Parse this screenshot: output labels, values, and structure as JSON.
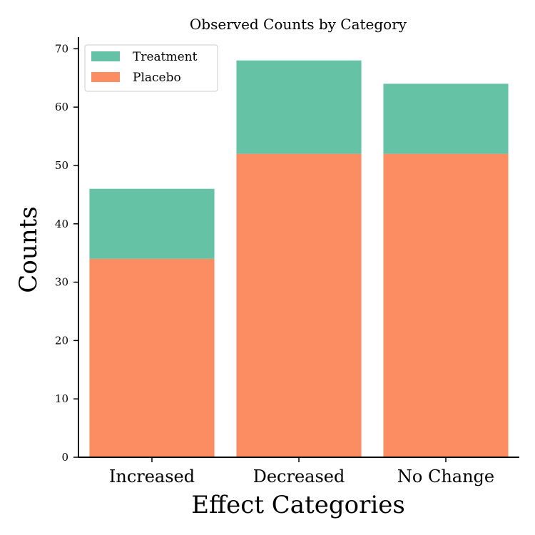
{
  "chart_data": {
    "type": "bar",
    "stacked": true,
    "title": "Observed Counts by Category",
    "xlabel": "Effect Categories",
    "ylabel": "Counts",
    "categories": [
      "Increased",
      "Decreased",
      "No Change"
    ],
    "series": [
      {
        "name": "Placebo",
        "values": [
          34,
          52,
          52
        ],
        "color": "#fc8d62"
      },
      {
        "name": "Treatment",
        "values": [
          12,
          16,
          12
        ],
        "color": "#66c2a5"
      }
    ],
    "ylim": [
      0,
      72
    ],
    "yticks": [
      0,
      10,
      20,
      30,
      40,
      50,
      60,
      70
    ],
    "grid": false,
    "legend_position": "top-left",
    "legend_order": [
      "Treatment",
      "Placebo"
    ]
  }
}
